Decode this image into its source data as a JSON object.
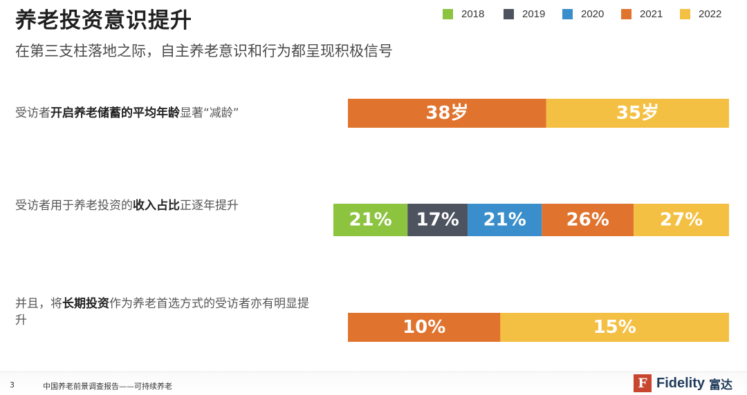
{
  "header": {
    "title": "养老投资意识提升",
    "subtitle": "在第三支柱落地之际，自主养老意识和行为都呈现积极信号"
  },
  "legend": [
    {
      "label": "2018",
      "color": "#8cc43f"
    },
    {
      "label": "2019",
      "color": "#4e5360"
    },
    {
      "label": "2020",
      "color": "#3a8ecb"
    },
    {
      "label": "2021",
      "color": "#e0742f"
    },
    {
      "label": "2022",
      "color": "#f4c043"
    }
  ],
  "rows": [
    {
      "label_parts": [
        "受访者",
        "开启养老储蓄的平均年龄",
        "显著“减龄”"
      ]
    },
    {
      "label_parts": [
        "受访者用于养老投资的",
        "收入占比",
        "正逐年提升"
      ]
    },
    {
      "label_parts": [
        "并且，将",
        "长期投资",
        "作为养老首选方式的受访者亦有明显提升"
      ]
    }
  ],
  "chart_data": [
    {
      "type": "bar",
      "orientation": "horizontal-stacked",
      "categories": [
        "2021",
        "2022"
      ],
      "values": [
        38,
        35
      ],
      "value_labels": [
        "38岁",
        "35岁"
      ]
    },
    {
      "type": "bar",
      "orientation": "horizontal-stacked",
      "categories": [
        "2018",
        "2019",
        "2020",
        "2021",
        "2022"
      ],
      "values": [
        21,
        17,
        21,
        26,
        27
      ],
      "value_labels": [
        "21%",
        "17%",
        "21%",
        "26%",
        "27%"
      ]
    },
    {
      "type": "bar",
      "orientation": "horizontal-stacked",
      "categories": [
        "2021",
        "2022"
      ],
      "values": [
        10,
        15
      ],
      "value_labels": [
        "10%",
        "15%"
      ]
    }
  ],
  "footer": {
    "page_number": "3",
    "report_name": "中国养老前景调查报告——可持续养老",
    "logo_text": "Fidelity",
    "logo_cn": "富达",
    "logo_mark": "F"
  }
}
